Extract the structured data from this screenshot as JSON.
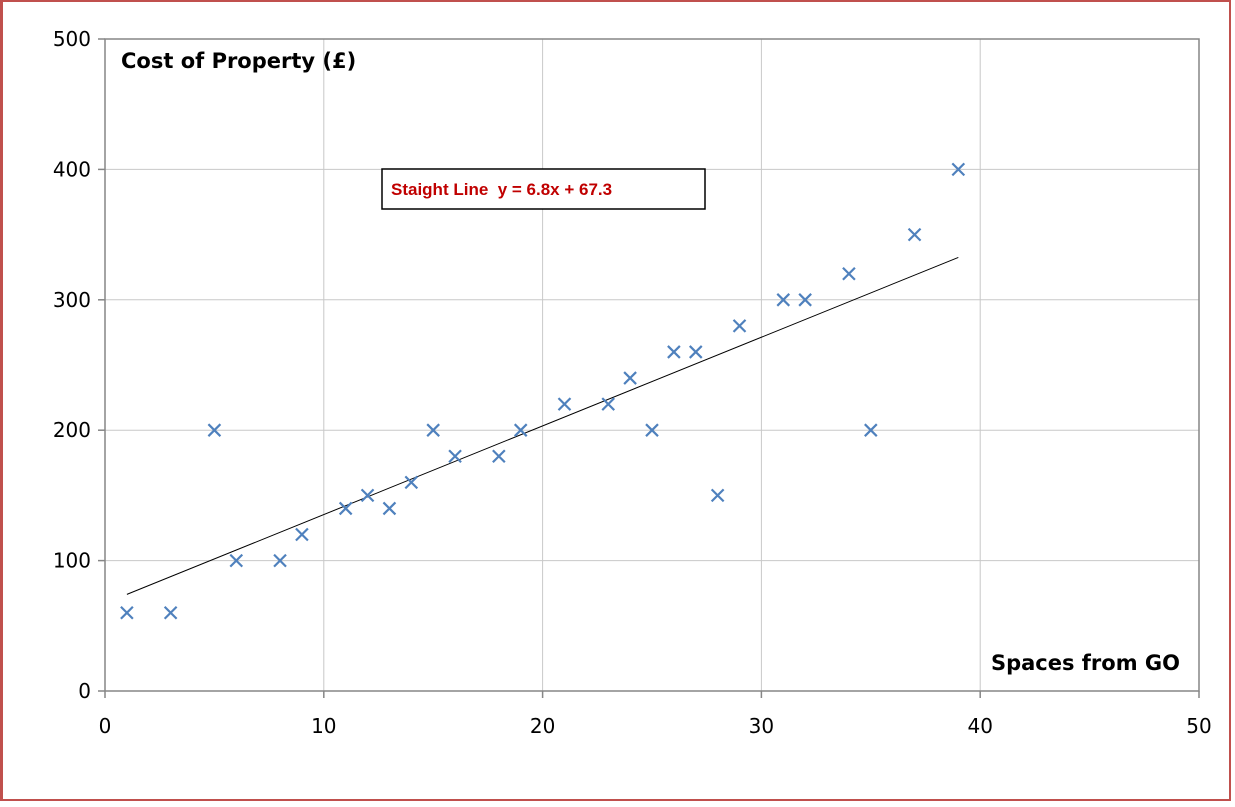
{
  "chart_data": {
    "type": "scatter",
    "title": "",
    "ylabel": "Cost of Property (£)",
    "xlabel": "Spaces from GO",
    "xlim": [
      0,
      50
    ],
    "ylim": [
      0,
      500
    ],
    "x_ticks": [
      "0",
      "10",
      "20",
      "30",
      "40",
      "50"
    ],
    "y_ticks": [
      "0",
      "100",
      "200",
      "300",
      "400",
      "500"
    ],
    "grid": true,
    "marker": "x",
    "marker_color": "#4f81bd",
    "points": [
      {
        "x": 1,
        "y": 60
      },
      {
        "x": 3,
        "y": 60
      },
      {
        "x": 5,
        "y": 200
      },
      {
        "x": 6,
        "y": 100
      },
      {
        "x": 8,
        "y": 100
      },
      {
        "x": 9,
        "y": 120
      },
      {
        "x": 11,
        "y": 140
      },
      {
        "x": 12,
        "y": 150
      },
      {
        "x": 13,
        "y": 140
      },
      {
        "x": 14,
        "y": 160
      },
      {
        "x": 15,
        "y": 200
      },
      {
        "x": 16,
        "y": 180
      },
      {
        "x": 18,
        "y": 180
      },
      {
        "x": 19,
        "y": 200
      },
      {
        "x": 21,
        "y": 220
      },
      {
        "x": 23,
        "y": 220
      },
      {
        "x": 24,
        "y": 240
      },
      {
        "x": 25,
        "y": 200
      },
      {
        "x": 26,
        "y": 260
      },
      {
        "x": 27,
        "y": 260
      },
      {
        "x": 28,
        "y": 150
      },
      {
        "x": 29,
        "y": 280
      },
      {
        "x": 31,
        "y": 300
      },
      {
        "x": 32,
        "y": 300
      },
      {
        "x": 34,
        "y": 320
      },
      {
        "x": 35,
        "y": 200
      },
      {
        "x": 37,
        "y": 350
      },
      {
        "x": 39,
        "y": 400
      }
    ],
    "trendline": {
      "slope": 6.8,
      "intercept": 67.3,
      "x_range": [
        1,
        39
      ],
      "label": "Staight Line  y = 6.8x + 67.3",
      "color": "#000000",
      "label_color": "#c00000"
    }
  }
}
